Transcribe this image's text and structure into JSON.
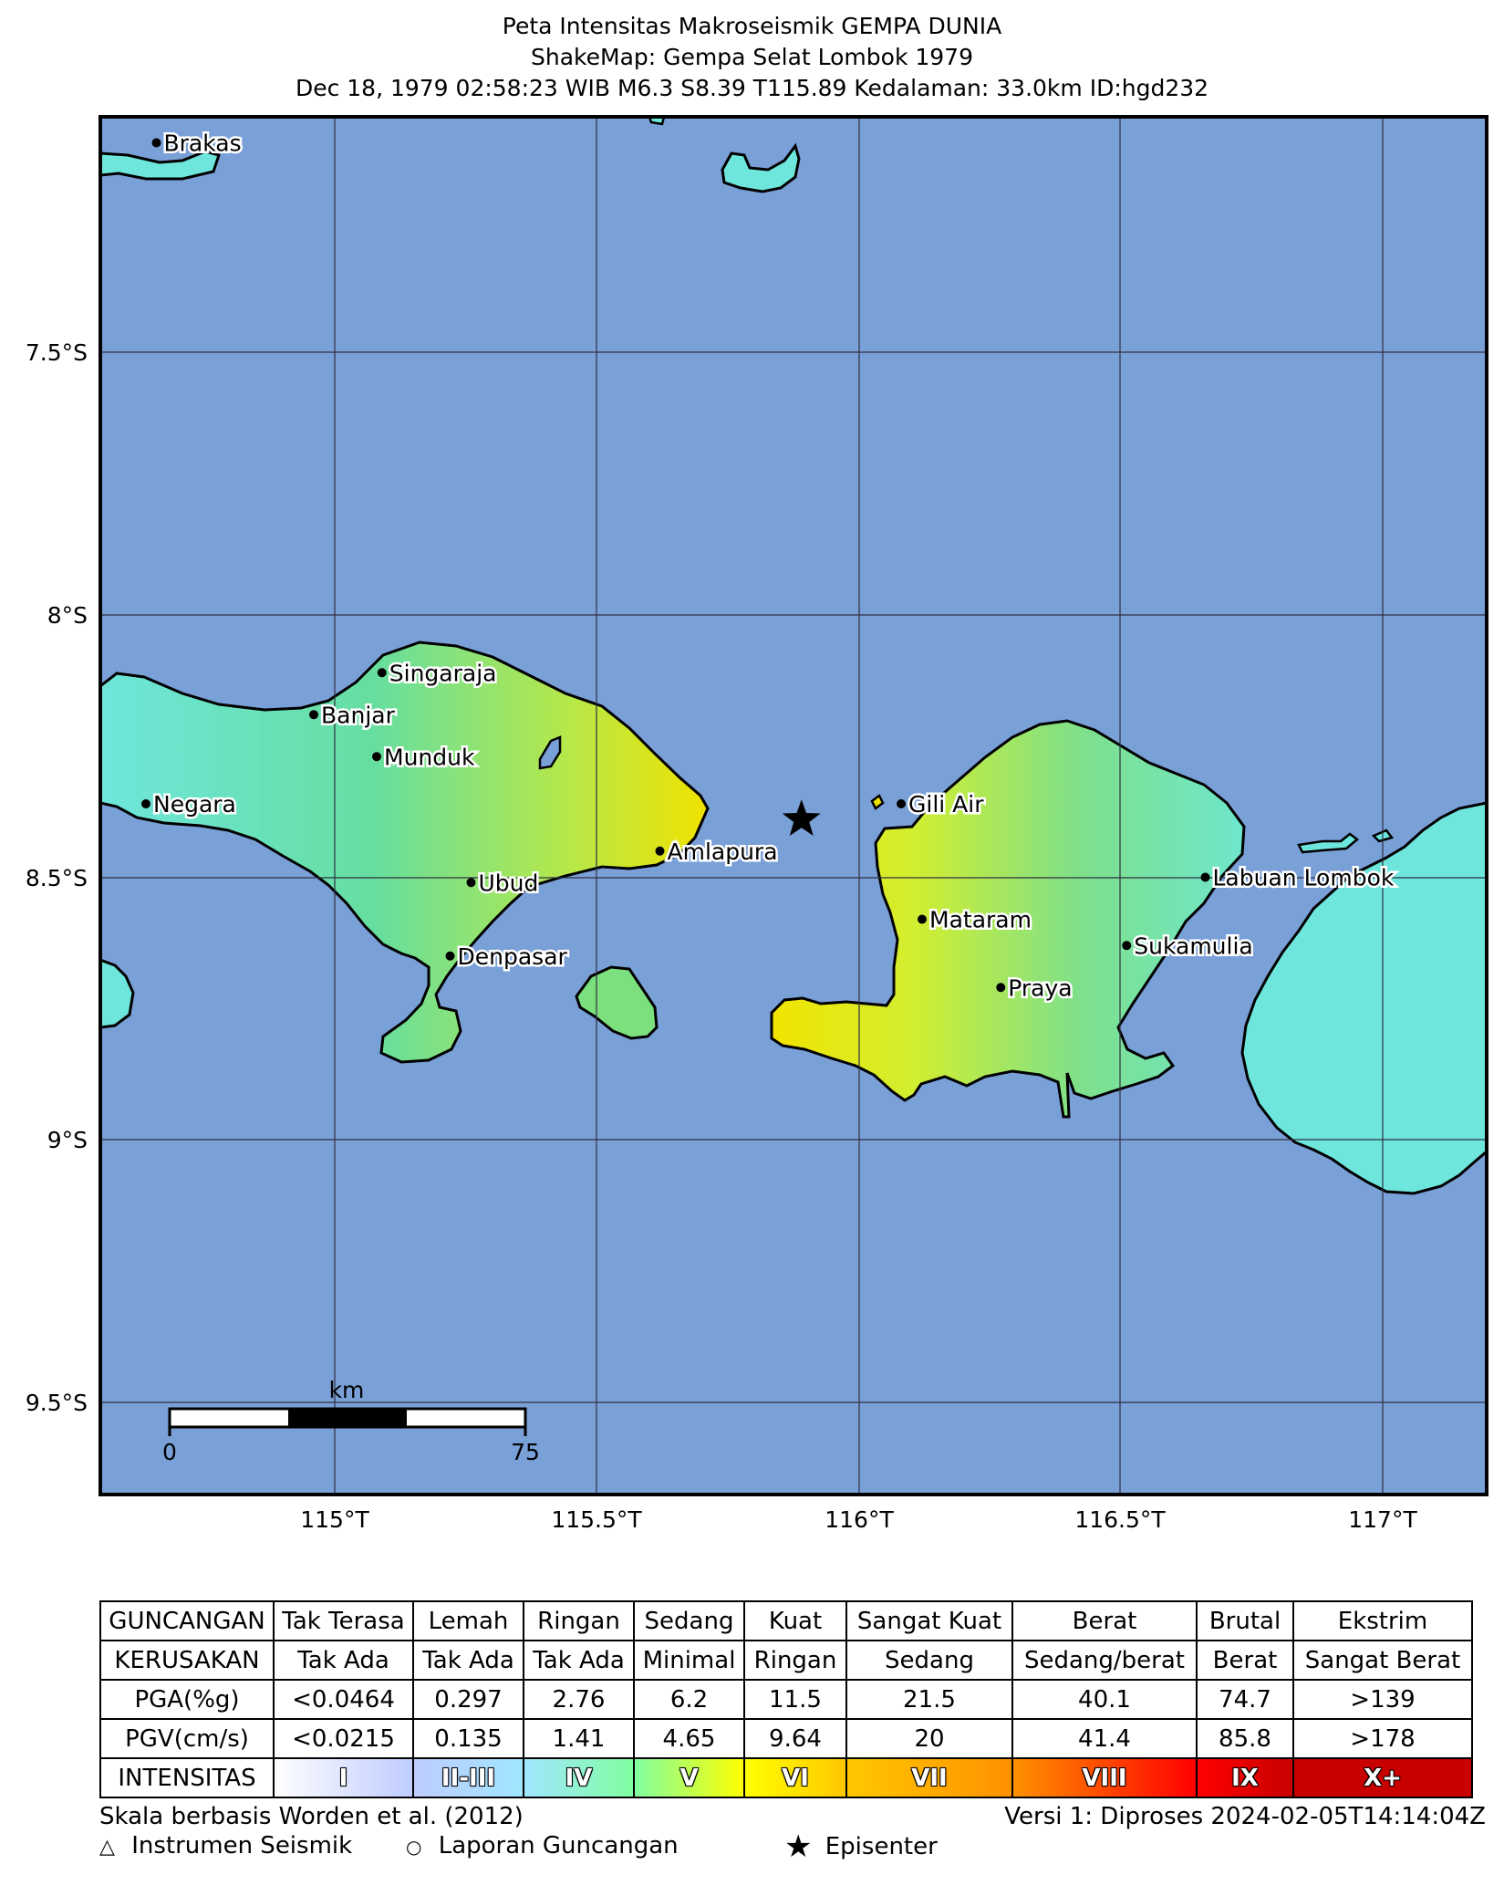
{
  "header": {
    "line1": "Peta Intensitas Makroseismik GEMPA DUNIA",
    "line2": "ShakeMap: Gempa Selat Lombok 1979",
    "line3": "Dec 18, 1979 02:58:23 WIB M6.3 S8.39 T115.89 Kedalaman: 33.0km ID:hgd232"
  },
  "map": {
    "lat_ticks": [
      "7.5°S",
      "8°S",
      "8.5°S",
      "9°S",
      "9.5°S"
    ],
    "lon_ticks": [
      "115°T",
      "115.5°T",
      "116°T",
      "116.5°T",
      "117°T"
    ],
    "cities": [
      {
        "name": "Brakas",
        "lon": 114.66,
        "lat": -7.1
      },
      {
        "name": "Singaraja",
        "lon": 115.09,
        "lat": -8.11
      },
      {
        "name": "Banjar",
        "lon": 114.96,
        "lat": -8.19
      },
      {
        "name": "Munduk",
        "lon": 115.08,
        "lat": -8.27
      },
      {
        "name": "Negara",
        "lon": 114.64,
        "lat": -8.36
      },
      {
        "name": "Amlapura",
        "lon": 115.62,
        "lat": -8.45
      },
      {
        "name": "Ubud",
        "lon": 115.26,
        "lat": -8.51
      },
      {
        "name": "Denpasar",
        "lon": 115.22,
        "lat": -8.65
      },
      {
        "name": "Gili Air",
        "lon": 116.08,
        "lat": -8.36
      },
      {
        "name": "Labuan Lombok",
        "lon": 116.66,
        "lat": -8.5
      },
      {
        "name": "Mataram",
        "lon": 116.12,
        "lat": -8.58
      },
      {
        "name": "Sukamulia",
        "lon": 116.51,
        "lat": -8.63
      },
      {
        "name": "Praya",
        "lon": 116.27,
        "lat": -8.71
      }
    ],
    "epicenter": {
      "lon": 115.89,
      "lat": -8.39
    },
    "scalebar": {
      "unit": "km",
      "start": "0",
      "end": "75"
    },
    "colors": {
      "water": "#7aa0d8",
      "intensity_IV": "#6fe6df",
      "intensity_V": "#66dd9a",
      "intensity_VI": "#d8ee30",
      "intensity_VII": "#f2e000"
    }
  },
  "legend_table": {
    "rows": [
      {
        "header": "GUNCANGAN",
        "cells": [
          "Tak Terasa",
          "Lemah",
          "Ringan",
          "Sedang",
          "Kuat",
          "Sangat Kuat",
          "Berat",
          "Brutal",
          "Ekstrim"
        ]
      },
      {
        "header": "KERUSAKAN",
        "cells": [
          "Tak Ada",
          "Tak Ada",
          "Tak Ada",
          "Minimal",
          "Ringan",
          "Sedang",
          "Sedang/berat",
          "Berat",
          "Sangat Berat"
        ]
      },
      {
        "header": "PGA(%g)",
        "cells": [
          "<0.0464",
          "0.297",
          "2.76",
          "6.2",
          "11.5",
          "21.5",
          "40.1",
          "74.7",
          ">139"
        ]
      },
      {
        "header": "PGV(cm/s)",
        "cells": [
          "<0.0215",
          "0.135",
          "1.41",
          "4.65",
          "9.64",
          "20",
          "41.4",
          "85.8",
          ">178"
        ]
      }
    ],
    "intensity": {
      "header": "INTENSITAS",
      "cells": [
        "I",
        "II-III",
        "IV",
        "V",
        "VI",
        "VII",
        "VIII",
        "IX",
        "X+"
      ],
      "colors": [
        "#ffffff",
        "#bfccff",
        "#a0e6ff",
        "#80ffa0",
        "#ffff00",
        "#ffc800",
        "#ff9100",
        "#ff0000",
        "#c80000"
      ]
    }
  },
  "footer": {
    "scale_note": "Skala berbasis Worden et al. (2012)",
    "version": "Versi 1: Diproses 2024-02-05T14:14:04Z",
    "legend_instrument": "Instrumen Seismik",
    "legend_report": "Laporan Guncangan",
    "legend_epicenter": "Episenter"
  }
}
